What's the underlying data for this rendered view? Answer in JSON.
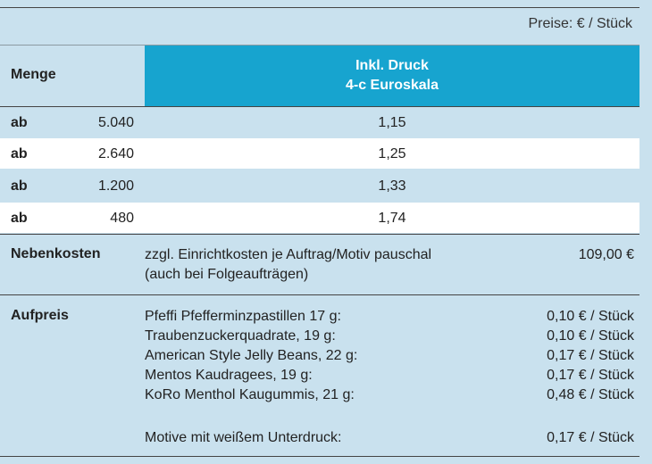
{
  "header": {
    "price_unit": "Preise: € / Stück",
    "menge_label": "Menge",
    "druck_line1": "Inkl. Druck",
    "druck_line2": "4-c Euroskala"
  },
  "quantity_rows": [
    {
      "prefix": "ab",
      "qty": "5.040",
      "price": "1,15"
    },
    {
      "prefix": "ab",
      "qty": "2.640",
      "price": "1,25"
    },
    {
      "prefix": "ab",
      "qty": "1.200",
      "price": "1,33"
    },
    {
      "prefix": "ab",
      "qty": "480",
      "price": "1,74"
    }
  ],
  "nebenkosten": {
    "label": "Nebenkosten",
    "line1": "zzgl. Einrichtkosten je Auftrag/Motiv pauschal",
    "line2": "(auch bei Folgeaufträgen)",
    "amount": "109,00 €"
  },
  "aufpreis": {
    "label": "Aufpreis",
    "items": [
      {
        "text": "Pfeffi Pfefferminzpastillen 17 g:",
        "price": "0,10 € / Stück"
      },
      {
        "text": "Traubenzuckerquadrate, 19 g:",
        "price": "0,10 € / Stück"
      },
      {
        "text": "American Style Jelly Beans, 22 g:",
        "price": "0,17 € / Stück"
      },
      {
        "text": "Mentos Kaudragees, 19 g:",
        "price": "0,17 € / Stück"
      },
      {
        "text": "KoRo Menthol Kaugummis, 21 g:",
        "price": "0,48 € / Stück"
      }
    ],
    "extra": {
      "text": "Motive mit weißem Unterdruck:",
      "price": "0,17 € / Stück"
    }
  }
}
